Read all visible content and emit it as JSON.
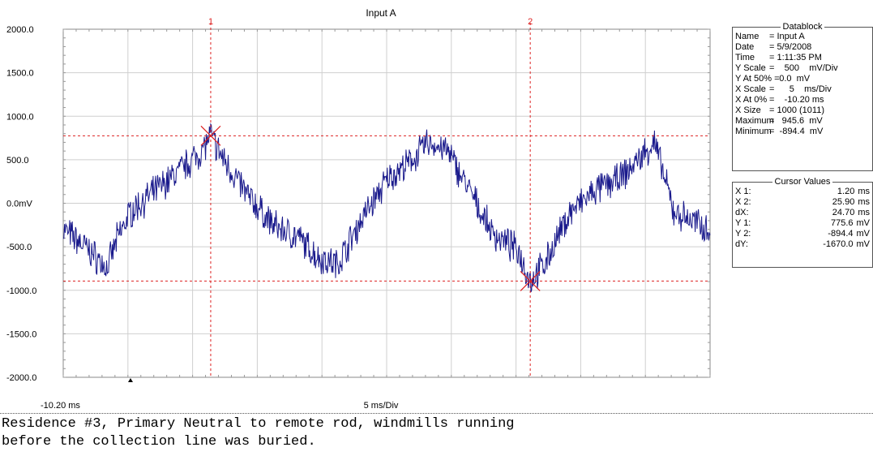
{
  "chart_data": {
    "type": "line",
    "title": "Input A",
    "y_ticks": [
      "2000.0",
      "1500.0",
      "1000.0",
      "500.0",
      "0.0mV",
      "-500.0",
      "-1000.0",
      "-1500.0",
      "-2000.0"
    ],
    "ylim": [
      -2000,
      2000
    ],
    "xlim": [
      -10.2,
      39.8
    ],
    "x_start_label": "-10.20 ms",
    "x_scale_label": "5 ms/Div",
    "grid": true,
    "series": [
      {
        "color": "#1a1a8c",
        "x": [
          -10.2,
          -8.5,
          -6.8,
          -6.0,
          -5.0,
          -3.0,
          -1.0,
          0.5,
          1.2,
          2.0,
          4.0,
          6.0,
          8.0,
          9.5,
          11.0,
          13.0,
          15.0,
          16.5,
          18.0,
          19.5,
          21.0,
          23.0,
          25.0,
          25.9,
          27.0,
          29.0,
          31.0,
          33.0,
          35.5,
          37.0,
          39.8
        ],
        "y": [
          -300,
          -500,
          -750,
          -400,
          -100,
          150,
          400,
          600,
          776,
          550,
          100,
          -250,
          -400,
          -620,
          -700,
          -150,
          300,
          450,
          700,
          600,
          200,
          -350,
          -550,
          -894,
          -700,
          -100,
          150,
          300,
          700,
          -100,
          -300
        ]
      }
    ],
    "cursors": [
      {
        "label": "1",
        "x": 1.2,
        "y": 775.6
      },
      {
        "label": "2",
        "x": 25.9,
        "y": -894.4
      }
    ]
  },
  "datablock": {
    "title": "Datablock",
    "rows": [
      {
        "k": "Name",
        "v": "= Input A"
      },
      {
        "k": "Date",
        "v": "= 5/9/2008"
      },
      {
        "k": "Time",
        "v": "= 1:11:35 PM"
      },
      {
        "k": "Y Scale",
        "v": "=    500    mV/Div"
      },
      {
        "k": "Y At 50% =",
        "v": "    0.0  mV"
      },
      {
        "k": "X Scale",
        "v": "=      5    ms/Div"
      },
      {
        "k": "X At 0%",
        "v": "=    -10.20 ms"
      },
      {
        "k": "X Size",
        "v": "= 1000 (1011)"
      },
      {
        "k": "Maximum",
        "v": "=   945.6  mV"
      },
      {
        "k": "Minimum",
        "v": "=  -894.4  mV"
      }
    ]
  },
  "cursor_values": {
    "title": "Cursor Values",
    "rows": [
      {
        "k": "X 1:",
        "v": "1.20",
        "u": "ms"
      },
      {
        "k": "X 2:",
        "v": "25.90",
        "u": "ms"
      },
      {
        "k": "dX:",
        "v": "24.70",
        "u": "ms"
      },
      {
        "k": "Y 1:",
        "v": "775.6",
        "u": "mV"
      },
      {
        "k": "Y 2:",
        "v": "-894.4",
        "u": "mV"
      },
      {
        "k": "dY:",
        "v": "-1670.0",
        "u": "mV"
      }
    ]
  },
  "caption": {
    "line1": "Residence #3, Primary Neutral to remote rod, windmills running",
    "line2": "before the collection line was buried."
  }
}
